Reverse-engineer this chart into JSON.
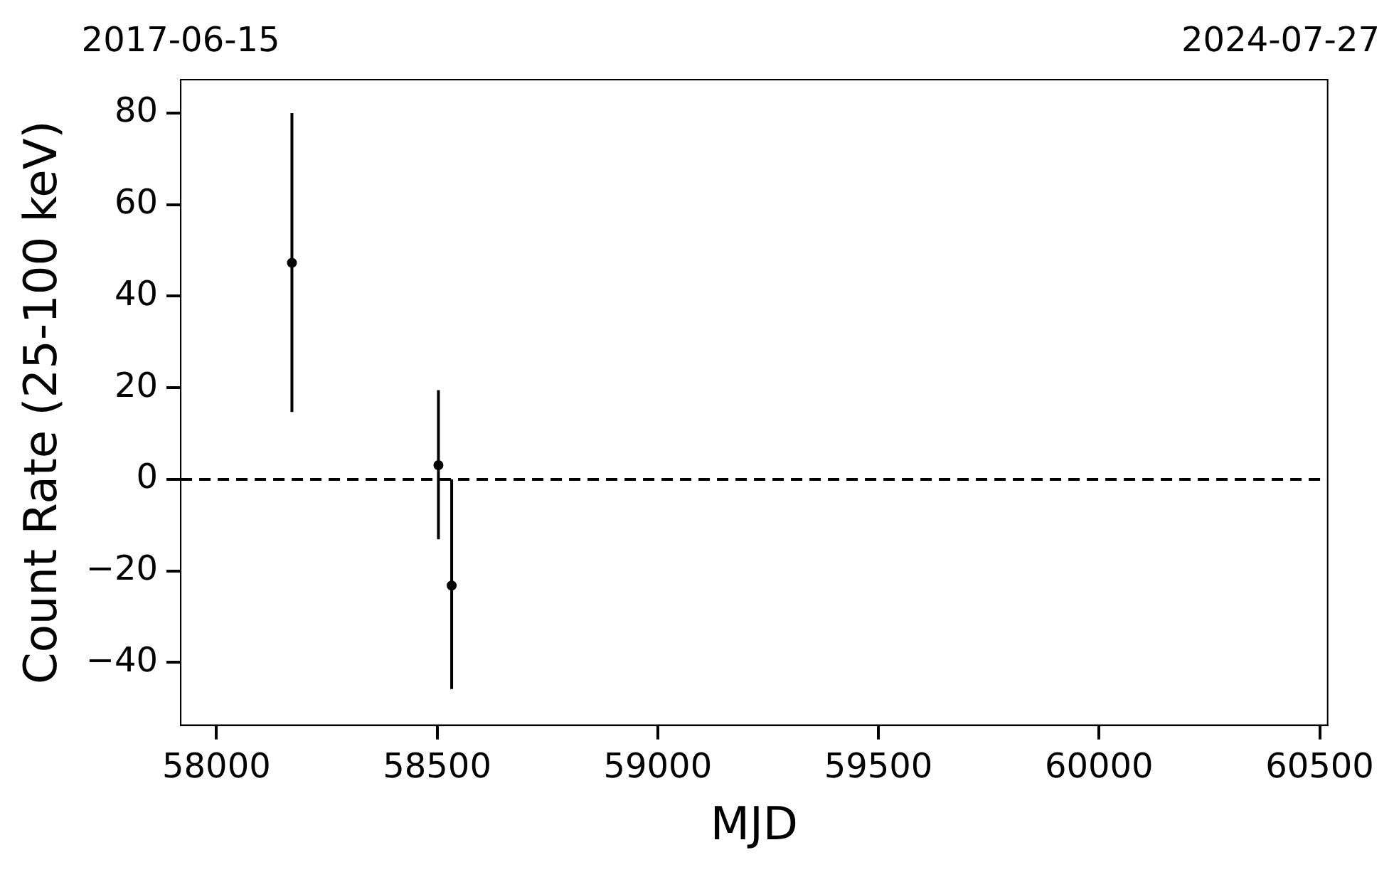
{
  "chart_data": {
    "type": "scatter",
    "xlabel": "MJD",
    "ylabel": "Count Rate (25-100 keV)",
    "x": [
      58171,
      58503,
      58533
    ],
    "values": [
      47.3,
      3.1,
      -23.2
    ],
    "errors": [
      [
        14.7,
        80
      ],
      [
        -13.1,
        19.5
      ],
      [
        -45.8,
        0
      ]
    ],
    "color": "#000000",
    "marker": "circle",
    "xlim": [
      57919,
      60518
    ],
    "xticks": [
      58000,
      58500,
      59000,
      59500,
      60000,
      60500
    ],
    "annotations": [
      "2017-06-15",
      "2024-07-27"
    ],
    "ylim": [
      -53.7,
      87.3
    ],
    "yticks": [
      {
        "value": -40,
        "label": "−40"
      },
      {
        "value": -20,
        "label": "−20"
      },
      0,
      20,
      40,
      60,
      80
    ],
    "ref_lines": [
      {
        "axis": "y",
        "value": 0,
        "color": "#000000",
        "line_style": "dashed"
      }
    ],
    "grid": false,
    "legend": false
  }
}
